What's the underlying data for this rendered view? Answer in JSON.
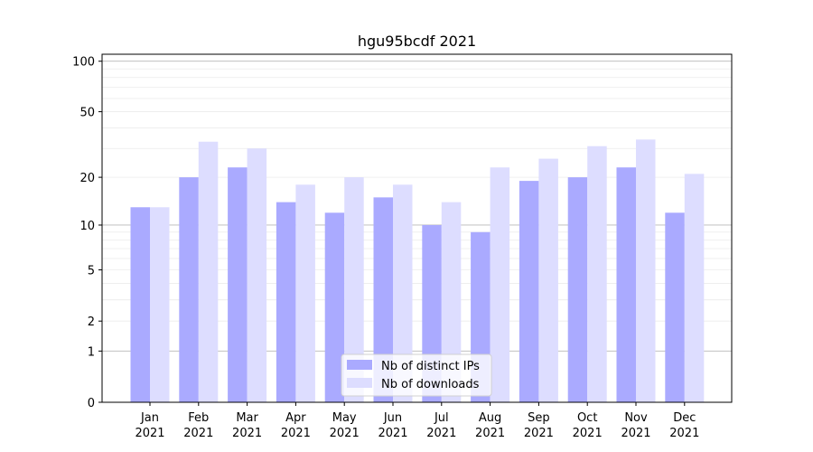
{
  "chart_data": {
    "type": "bar",
    "title": "hgu95bcdf 2021",
    "xlabel": "",
    "ylabel": "",
    "yscale": "log1p",
    "ylim": [
      0,
      110
    ],
    "yticks": [
      0,
      1,
      2,
      5,
      10,
      20,
      50,
      100
    ],
    "grid": true,
    "legend_position": "bottom-center",
    "categories": [
      "Jan",
      "Feb",
      "Mar",
      "Apr",
      "May",
      "Jun",
      "Jul",
      "Aug",
      "Sep",
      "Oct",
      "Nov",
      "Dec"
    ],
    "category_sublabel": "2021",
    "series": [
      {
        "name": "Nb of distinct IPs",
        "color": "#aaaaff",
        "values": [
          13,
          20,
          23,
          14,
          12,
          15,
          10,
          9,
          19,
          20,
          23,
          12
        ]
      },
      {
        "name": "Nb of downloads",
        "color": "#ddddff",
        "values": [
          13,
          33,
          30,
          18,
          20,
          18,
          14,
          23,
          26,
          31,
          34,
          21
        ]
      }
    ]
  }
}
